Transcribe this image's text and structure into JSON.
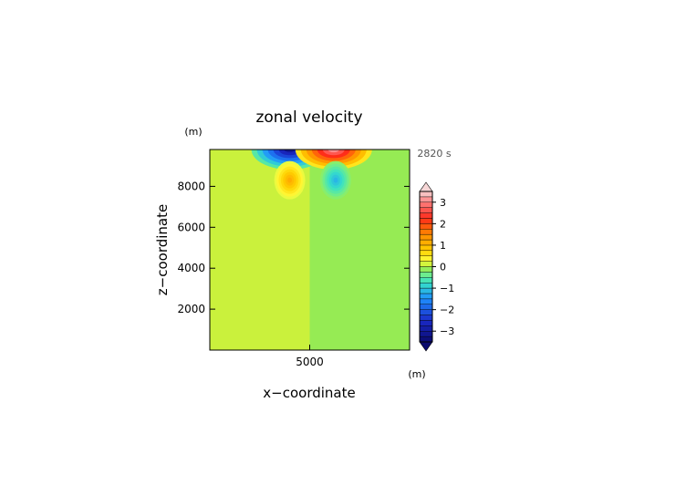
{
  "chart_data": {
    "type": "heatmap",
    "title": "zonal velocity",
    "xlabel": "x−coordinate",
    "ylabel": "z−coordinate",
    "x_unit": "(m)",
    "y_unit": "(m)",
    "time_label": "2820 s",
    "xlim": [
      0,
      10000
    ],
    "ylim": [
      0,
      9800
    ],
    "xticks": [
      5000
    ],
    "xtick_labels": [
      "5000"
    ],
    "yticks": [
      2000,
      4000,
      6000,
      8000
    ],
    "ytick_labels": [
      "2000",
      "4000",
      "6000",
      "8000"
    ],
    "colorbar": {
      "min": -3.5,
      "max": 3.5,
      "step": 0.25,
      "tick_values": [
        3,
        2,
        1,
        0,
        -1,
        -2,
        -3
      ],
      "tick_labels": [
        "3",
        "2",
        "1",
        "0",
        "−1",
        "−2",
        "−3"
      ],
      "stops": [
        {
          "v": -3.5,
          "c": "#0a0a6e"
        },
        {
          "v": -2.5,
          "c": "#1a2ac8"
        },
        {
          "v": -1.5,
          "c": "#1e90ff"
        },
        {
          "v": -0.75,
          "c": "#36e0c8"
        },
        {
          "v": -0.25,
          "c": "#7ff07a"
        },
        {
          "v": 0,
          "c": "#a6e83a"
        },
        {
          "v": 0.25,
          "c": "#ffff40"
        },
        {
          "v": 0.75,
          "c": "#ffd000"
        },
        {
          "v": 1.5,
          "c": "#ff8a00"
        },
        {
          "v": 2.25,
          "c": "#ff2a1a"
        },
        {
          "v": 3.0,
          "c": "#ff7f7f"
        },
        {
          "v": 3.5,
          "c": "#f6d6d6"
        }
      ]
    },
    "features": [
      {
        "name": "negative-core-top-left",
        "x": 4000,
        "z": 9800,
        "value": -3.5
      },
      {
        "name": "positive-core-top-right",
        "x": 6200,
        "z": 9800,
        "value": 3.5
      },
      {
        "name": "positive-lobe-lower-left",
        "x": 4000,
        "z": 8300,
        "value": 1.3
      },
      {
        "name": "negative-lobe-lower-right",
        "x": 6300,
        "z": 8300,
        "value": -1.3
      }
    ],
    "background": {
      "left_value": 0.1,
      "right_value": -0.1,
      "split_x": 5000
    }
  }
}
